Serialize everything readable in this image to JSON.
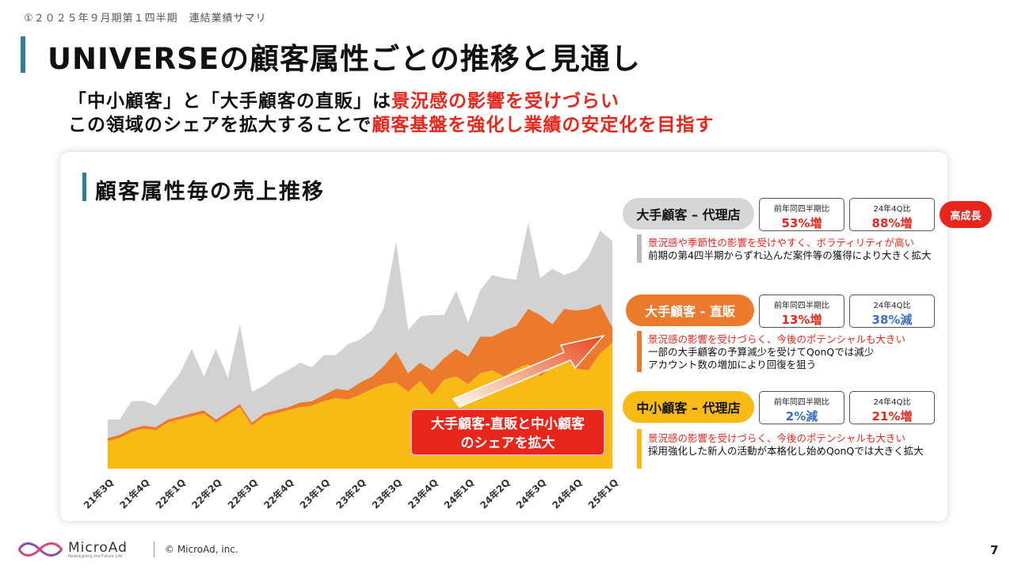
{
  "breadcrumb": "①２０２５年９月期第１四半期　連結業績サマリ",
  "title": "UNIVERSEの顧客属性ごとの推移と見通し",
  "subtitle": {
    "line1_black": "「中小顧客」と「大手顧客の直販」は",
    "line1_red": "景況感の影響を受けづらい",
    "line2_black": "この領域のシェアを拡大することで",
    "line2_red": "顧客基盤を強化し業績の安定化を目指す"
  },
  "chart_title": "顧客属性毎の売上推移",
  "chart_data": {
    "type": "area",
    "stacked": true,
    "categories": [
      "21年3Q",
      "",
      "",
      "21年4Q",
      "",
      "",
      "22年1Q",
      "",
      "",
      "22年2Q",
      "",
      "",
      "22年3Q",
      "",
      "",
      "22年4Q",
      "",
      "",
      "23年1Q",
      "",
      "",
      "23年2Q",
      "",
      "",
      "23年3Q",
      "",
      "",
      "23年4Q",
      "",
      "",
      "24年1Q",
      "",
      "",
      "24年2Q",
      "",
      "",
      "24年3Q",
      "",
      "",
      "24年4Q",
      "",
      "",
      "25年1Q"
    ],
    "tick_labels": [
      "21年3Q",
      "21年4Q",
      "22年1Q",
      "22年2Q",
      "22年3Q",
      "22年4Q",
      "23年1Q",
      "23年2Q",
      "23年3Q",
      "23年4Q",
      "24年1Q",
      "24年2Q",
      "24年3Q",
      "24年4Q",
      "25年1Q"
    ],
    "series": [
      {
        "name": "中小顧客 – 代理店",
        "color": "#f8bb16",
        "values": [
          18,
          20,
          24,
          26,
          25,
          30,
          32,
          34,
          36,
          30,
          35,
          40,
          28,
          34,
          36,
          38,
          40,
          41,
          44,
          46,
          45,
          48,
          52,
          55,
          56,
          50,
          57,
          48,
          58,
          60,
          55,
          62,
          64,
          60,
          65,
          68,
          60,
          66,
          72,
          65,
          64,
          75,
          82
        ]
      },
      {
        "name": "大手顧客 - 直販",
        "color": "#ec7a2c",
        "values": [
          2,
          2,
          2,
          2,
          2,
          2,
          2,
          2,
          2,
          2,
          2,
          2,
          2,
          2,
          2,
          2,
          3,
          3,
          4,
          6,
          6,
          8,
          8,
          12,
          20,
          12,
          12,
          16,
          14,
          18,
          18,
          24,
          22,
          30,
          28,
          36,
          40,
          28,
          32,
          38,
          40,
          32,
          10
        ]
      },
      {
        "name": "大手顧客 – 代理店",
        "color": "#d2d2d2",
        "values": [
          12,
          10,
          18,
          16,
          14,
          20,
          28,
          42,
          22,
          46,
          22,
          52,
          20,
          18,
          22,
          24,
          26,
          22,
          26,
          22,
          30,
          28,
          30,
          38,
          72,
          28,
          30,
          36,
          28,
          38,
          22,
          30,
          40,
          34,
          30,
          56,
          24,
          36,
          22,
          26,
          34,
          48,
          56
        ]
      }
    ],
    "ylim": [
      0,
      170
    ],
    "xlabel": "",
    "ylabel": "",
    "grid": false
  },
  "categories": {
    "large_agency": {
      "label": "大手顧客 – 代理店",
      "yoy_label": "前年同四半期比",
      "yoy_value": "53%増",
      "qoq_label": "24年4Q比",
      "qoq_value": "88%増",
      "badge": "高成長",
      "note_red": "景況感や季節性の影響を受けやすく、ボラティリティが高い",
      "note_black": "前期の第4四半期からずれ込んだ案件等の獲得により大きく拡大"
    },
    "large_direct": {
      "label": "大手顧客 - 直販",
      "yoy_label": "前年同四半期比",
      "yoy_value": "13%増",
      "qoq_label": "24年4Q比",
      "qoq_value": "38%減",
      "note_red": "景況感の影響を受けづらく、今後のポテンシャルも大きい",
      "note_black1": "一部の大手顧客の予算減少を受けてQonQでは減少",
      "note_black2": "アカウント数の増加により回復を狙う"
    },
    "sme_agency": {
      "label": "中小顧客 – 代理店",
      "yoy_label": "前年同四半期比",
      "yoy_value": "2%減",
      "qoq_label": "24年4Q比",
      "qoq_value": "21%増",
      "note_red": "景況感の影響を受けづらく、今後のポテンシャルも大きい",
      "note_black": "採用強化した新人の活動が本格化し始めQonQでは大きく拡大"
    }
  },
  "callout": {
    "line1": "大手顧客-直販と中小顧客",
    "line2": "のシェアを拡大"
  },
  "footer": {
    "logo": "MicroAd",
    "tagline": "Redesigning the Future Life",
    "copyright": "© MicroAd, inc.",
    "page": "7"
  },
  "colors": {
    "accent": "#2e7d9a",
    "red": "#e8261c",
    "blue": "#3a6fc4",
    "orange": "#ec7a2c",
    "yellow": "#f8bb16",
    "gray": "#d2d2d2"
  }
}
